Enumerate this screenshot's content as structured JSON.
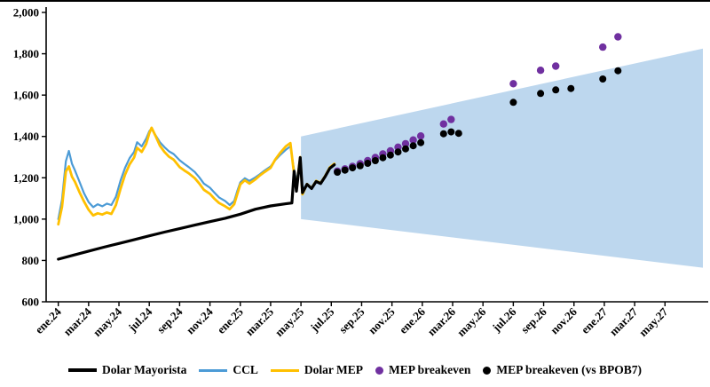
{
  "chart_data": {
    "type": "line",
    "title": "",
    "xlabel": "",
    "ylabel": "",
    "x_unit": "months since ene.24 (0 = ene.24)",
    "xlim": [
      -0.8,
      42.5
    ],
    "ylim": [
      600,
      2000
    ],
    "grid": false,
    "legend_position": "bottom",
    "y_ticks": [
      {
        "value": 600,
        "label": "600"
      },
      {
        "value": 800,
        "label": "800"
      },
      {
        "value": 1000,
        "label": "1,000"
      },
      {
        "value": 1200,
        "label": "1,200"
      },
      {
        "value": 1400,
        "label": "1,400"
      },
      {
        "value": 1600,
        "label": "1,600"
      },
      {
        "value": 1800,
        "label": "1,800"
      },
      {
        "value": 2000,
        "label": "2,000"
      }
    ],
    "x_ticks": [
      {
        "x": 0,
        "label": "ene.24"
      },
      {
        "x": 2,
        "label": "mar.24"
      },
      {
        "x": 4,
        "label": "may.24"
      },
      {
        "x": 6,
        "label": "jul.24"
      },
      {
        "x": 8,
        "label": "sep.24"
      },
      {
        "x": 10,
        "label": "nov.24"
      },
      {
        "x": 12,
        "label": "ene.25"
      },
      {
        "x": 14,
        "label": "mar.25"
      },
      {
        "x": 16,
        "label": "may.25"
      },
      {
        "x": 18,
        "label": "jul.25"
      },
      {
        "x": 20,
        "label": "sep.25"
      },
      {
        "x": 22,
        "label": "nov.25"
      },
      {
        "x": 24,
        "label": "ene.26"
      },
      {
        "x": 26,
        "label": "mar.26"
      },
      {
        "x": 28,
        "label": "may.26"
      },
      {
        "x": 30,
        "label": "jul.26"
      },
      {
        "x": 32,
        "label": "sep.26"
      },
      {
        "x": 34,
        "label": "nov.26"
      },
      {
        "x": 36,
        "label": "ene.27"
      },
      {
        "x": 38,
        "label": "mar.27"
      },
      {
        "x": 40,
        "label": "may.27"
      }
    ],
    "projection_band": {
      "id": "crawling-band-projection",
      "x_start": 16,
      "top_start": 1400,
      "bottom_start": 1000,
      "x_end": 42.5,
      "top_end": 1825,
      "bottom_end": 765,
      "color": "#BDD7EE"
    },
    "line_series": [
      {
        "id": "ccl",
        "name": "CCL",
        "color": "#4C9BD6",
        "width": 2.2,
        "points": [
          [
            0,
            1000
          ],
          [
            0.25,
            1095
          ],
          [
            0.5,
            1280
          ],
          [
            0.7,
            1330
          ],
          [
            0.9,
            1268
          ],
          [
            1.1,
            1235
          ],
          [
            1.4,
            1180
          ],
          [
            1.7,
            1125
          ],
          [
            2,
            1082
          ],
          [
            2.3,
            1058
          ],
          [
            2.6,
            1072
          ],
          [
            2.9,
            1062
          ],
          [
            3.2,
            1075
          ],
          [
            3.5,
            1068
          ],
          [
            3.8,
            1108
          ],
          [
            4.1,
            1185
          ],
          [
            4.4,
            1248
          ],
          [
            4.7,
            1295
          ],
          [
            5,
            1325
          ],
          [
            5.2,
            1372
          ],
          [
            5.5,
            1352
          ],
          [
            5.8,
            1390
          ],
          [
            6,
            1425
          ],
          [
            6.15,
            1438
          ],
          [
            6.4,
            1408
          ],
          [
            6.7,
            1372
          ],
          [
            7,
            1348
          ],
          [
            7.3,
            1328
          ],
          [
            7.6,
            1315
          ],
          [
            8,
            1285
          ],
          [
            8.3,
            1268
          ],
          [
            8.6,
            1252
          ],
          [
            9,
            1228
          ],
          [
            9.3,
            1202
          ],
          [
            9.6,
            1172
          ],
          [
            10,
            1152
          ],
          [
            10.3,
            1128
          ],
          [
            10.6,
            1105
          ],
          [
            11,
            1088
          ],
          [
            11.3,
            1068
          ],
          [
            11.6,
            1088
          ],
          [
            11.8,
            1135
          ],
          [
            12,
            1178
          ],
          [
            12.3,
            1198
          ],
          [
            12.6,
            1185
          ],
          [
            13,
            1202
          ],
          [
            13.3,
            1218
          ],
          [
            13.6,
            1235
          ],
          [
            14,
            1255
          ],
          [
            14.3,
            1285
          ],
          [
            14.6,
            1308
          ],
          [
            15,
            1335
          ],
          [
            15.3,
            1352
          ],
          [
            15.5,
            1258
          ],
          [
            15.7,
            1180
          ],
          [
            15.95,
            1282
          ],
          [
            16.1,
            1148
          ],
          [
            16.2,
            1155
          ]
        ]
      },
      {
        "id": "dolar-mep",
        "name": "Dolar MEP",
        "color": "#FFC000",
        "width": 2.8,
        "points": [
          [
            0,
            975
          ],
          [
            0.25,
            1060
          ],
          [
            0.5,
            1230
          ],
          [
            0.7,
            1255
          ],
          [
            0.9,
            1205
          ],
          [
            1.1,
            1180
          ],
          [
            1.4,
            1130
          ],
          [
            1.7,
            1085
          ],
          [
            2,
            1045
          ],
          [
            2.3,
            1018
          ],
          [
            2.6,
            1028
          ],
          [
            2.9,
            1022
          ],
          [
            3.2,
            1032
          ],
          [
            3.5,
            1025
          ],
          [
            3.8,
            1068
          ],
          [
            4.1,
            1145
          ],
          [
            4.4,
            1215
          ],
          [
            4.7,
            1265
          ],
          [
            5,
            1298
          ],
          [
            5.2,
            1345
          ],
          [
            5.5,
            1325
          ],
          [
            5.8,
            1365
          ],
          [
            6,
            1415
          ],
          [
            6.15,
            1442
          ],
          [
            6.4,
            1405
          ],
          [
            6.7,
            1355
          ],
          [
            7,
            1325
          ],
          [
            7.3,
            1302
          ],
          [
            7.6,
            1288
          ],
          [
            8,
            1252
          ],
          [
            8.3,
            1236
          ],
          [
            8.6,
            1222
          ],
          [
            9,
            1198
          ],
          [
            9.3,
            1172
          ],
          [
            9.6,
            1142
          ],
          [
            10,
            1122
          ],
          [
            10.3,
            1098
          ],
          [
            10.6,
            1078
          ],
          [
            11,
            1062
          ],
          [
            11.3,
            1048
          ],
          [
            11.6,
            1072
          ],
          [
            11.8,
            1120
          ],
          [
            12,
            1168
          ],
          [
            12.3,
            1188
          ],
          [
            12.6,
            1172
          ],
          [
            13,
            1192
          ],
          [
            13.3,
            1212
          ],
          [
            13.6,
            1228
          ],
          [
            14,
            1248
          ],
          [
            14.3,
            1288
          ],
          [
            14.6,
            1318
          ],
          [
            15,
            1352
          ],
          [
            15.3,
            1368
          ],
          [
            15.5,
            1245
          ],
          [
            15.7,
            1150
          ],
          [
            15.95,
            1300
          ],
          [
            16.1,
            1120
          ],
          [
            16.4,
            1170
          ],
          [
            16.7,
            1150
          ],
          [
            17,
            1185
          ],
          [
            17.3,
            1175
          ],
          [
            17.6,
            1210
          ],
          [
            17.9,
            1250
          ],
          [
            18.2,
            1268
          ]
        ]
      },
      {
        "id": "dolar-mayorista",
        "name": "Dolar Mayorista",
        "color": "#000000",
        "width": 3.2,
        "points": [
          [
            0,
            806
          ],
          [
            1,
            826
          ],
          [
            2,
            845
          ],
          [
            3,
            864
          ],
          [
            4,
            882
          ],
          [
            5,
            900
          ],
          [
            6,
            919
          ],
          [
            7,
            937
          ],
          [
            8,
            954
          ],
          [
            9,
            971
          ],
          [
            10,
            988
          ],
          [
            11,
            1004
          ],
          [
            12,
            1024
          ],
          [
            13,
            1048
          ],
          [
            14,
            1064
          ],
          [
            15,
            1074
          ],
          [
            15.4,
            1078
          ],
          [
            15.55,
            1232
          ],
          [
            15.7,
            1135
          ],
          [
            15.95,
            1298
          ],
          [
            16.1,
            1128
          ],
          [
            16.4,
            1168
          ],
          [
            16.7,
            1148
          ],
          [
            17,
            1182
          ],
          [
            17.3,
            1172
          ],
          [
            17.6,
            1207
          ],
          [
            17.9,
            1246
          ],
          [
            18.2,
            1263
          ]
        ]
      }
    ],
    "scatter_series": [
      {
        "id": "mep-breakeven",
        "name": "MEP breakeven",
        "color": "#7030A0",
        "radius": 4.2,
        "points": [
          [
            18.4,
            1232
          ],
          [
            18.9,
            1243
          ],
          [
            19.4,
            1255
          ],
          [
            19.9,
            1268
          ],
          [
            20.4,
            1283
          ],
          [
            20.9,
            1298
          ],
          [
            21.4,
            1315
          ],
          [
            21.9,
            1330
          ],
          [
            22.4,
            1348
          ],
          [
            22.9,
            1365
          ],
          [
            23.4,
            1383
          ],
          [
            23.9,
            1402
          ],
          [
            25.4,
            1460
          ],
          [
            25.9,
            1482
          ],
          [
            30,
            1655
          ],
          [
            31.8,
            1720
          ],
          [
            32.8,
            1740
          ],
          [
            35.9,
            1832
          ],
          [
            36.9,
            1882
          ]
        ]
      },
      {
        "id": "mep-breakeven-bpob7",
        "name": "MEP breakeven (vs BPOB7)",
        "color": "#000000",
        "radius": 4,
        "points": [
          [
            18.4,
            1227
          ],
          [
            18.9,
            1237
          ],
          [
            19.4,
            1248
          ],
          [
            19.9,
            1258
          ],
          [
            20.4,
            1270
          ],
          [
            20.9,
            1283
          ],
          [
            21.4,
            1297
          ],
          [
            21.9,
            1310
          ],
          [
            22.4,
            1325
          ],
          [
            22.9,
            1340
          ],
          [
            23.4,
            1355
          ],
          [
            23.9,
            1370
          ],
          [
            25.4,
            1413
          ],
          [
            25.9,
            1422
          ],
          [
            26.4,
            1415
          ],
          [
            30,
            1565
          ],
          [
            31.8,
            1608
          ],
          [
            32.8,
            1625
          ],
          [
            33.8,
            1632
          ],
          [
            35.9,
            1678
          ],
          [
            36.9,
            1718
          ]
        ]
      }
    ],
    "legend": [
      {
        "id": "dolar-mayorista",
        "label": "Dolar Mayorista",
        "marker": "line",
        "color": "#000000",
        "thickness": 4
      },
      {
        "id": "ccl",
        "label": "CCL",
        "marker": "line",
        "color": "#4C9BD6",
        "thickness": 3
      },
      {
        "id": "dolar-mep",
        "label": "Dolar MEP",
        "marker": "line",
        "color": "#FFC000",
        "thickness": 3
      },
      {
        "id": "mep-breakeven",
        "label": "MEP breakeven",
        "marker": "dot",
        "color": "#7030A0"
      },
      {
        "id": "mep-breakeven-bpob7",
        "label": "MEP breakeven (vs BPOB7)",
        "marker": "dot",
        "color": "#000000"
      }
    ]
  }
}
